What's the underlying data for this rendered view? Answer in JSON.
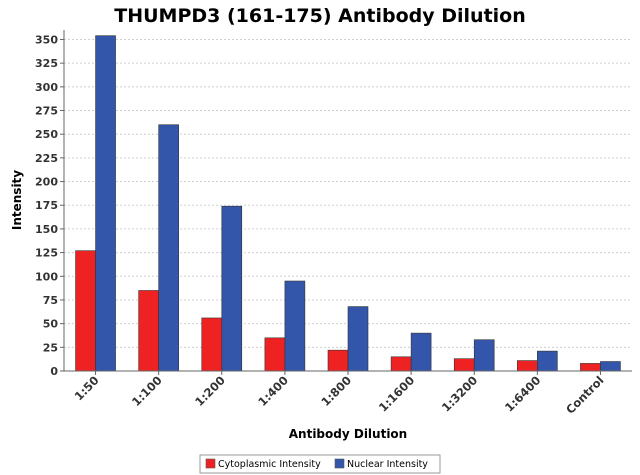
{
  "chart_data": {
    "type": "bar",
    "title": "THUMPD3 (161-175) Antibody Dilution",
    "xlabel": "Antibody Dilution",
    "ylabel": "Intensity",
    "categories": [
      "1:50",
      "1:100",
      "1:200",
      "1:400",
      "1:800",
      "1:1600",
      "1:3200",
      "1:6400",
      "Control"
    ],
    "series": [
      {
        "name": "Cytoplasmic Intensity",
        "color": "#ee2222",
        "values": [
          127,
          85,
          56,
          35,
          22,
          15,
          13,
          11,
          8
        ]
      },
      {
        "name": "Nuclear Intensity",
        "color": "#3355aa",
        "values": [
          354,
          260,
          174,
          95,
          68,
          40,
          33,
          21,
          10
        ]
      }
    ],
    "ylim": [
      0,
      360
    ],
    "yticks": [
      0,
      25,
      50,
      75,
      100,
      125,
      150,
      175,
      200,
      225,
      250,
      275,
      300,
      325,
      350
    ],
    "grid": true,
    "legend_position": "bottom"
  }
}
